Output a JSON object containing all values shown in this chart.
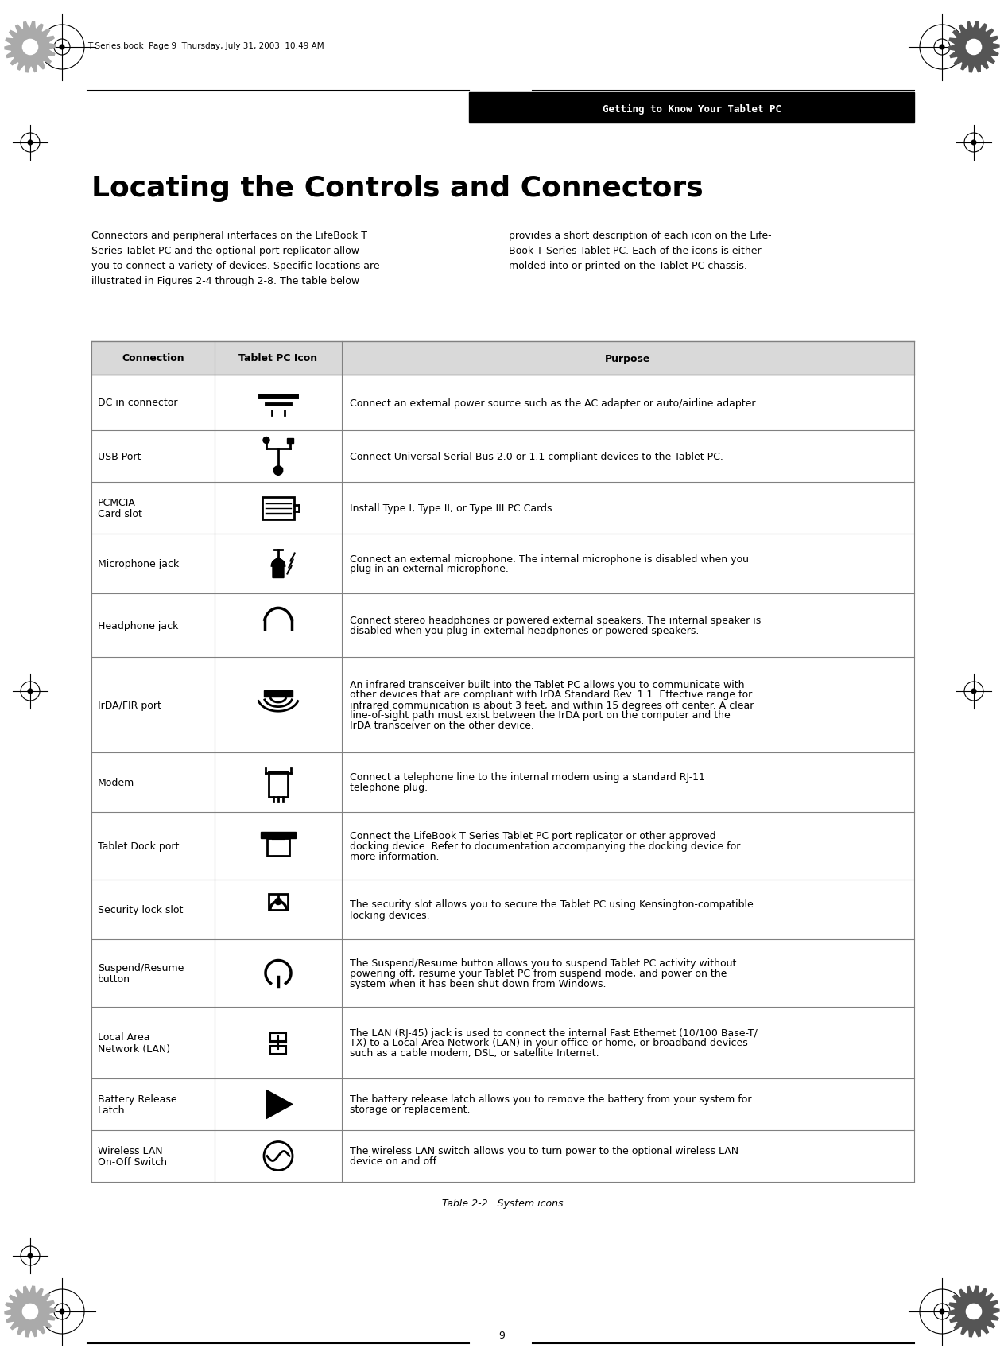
{
  "page_bg": "#ffffff",
  "header_bg": "#000000",
  "header_text": "Getting to Know Your Tablet PC",
  "header_text_color": "#ffffff",
  "title": "Locating the Controls and Connectors",
  "body_left": "Connectors and peripheral interfaces on the LifeBook T\nSeries Tablet PC and the optional port replicator allow\nyou to connect a variety of devices. Specific locations are\nillustrated in Figures 2-4 through 2-8. The table below",
  "body_right": "provides a short description of each icon on the Life-\nBook T Series Tablet PC. Each of the icons is either\nmolded into or printed on the Tablet PC chassis.",
  "table_caption": "Table 2-2.  System icons",
  "table_header_bg": "#d9d9d9",
  "table_header_cols": [
    "Connection",
    "Tablet PC Icon",
    "Purpose"
  ],
  "table_border_color": "#808080",
  "page_number": "9",
  "footer_text": "T Series.book  Page 9  Thursday, July 31, 2003  10:49 AM",
  "rows": [
    {
      "connection": "DC in connector",
      "purpose": "Connect an external power source such as the AC adapter or auto/airline adapter.",
      "icon_type": "dc_in"
    },
    {
      "connection": "USB Port",
      "purpose": "Connect Universal Serial Bus 2.0 or 1.1 compliant devices to the Tablet PC.",
      "icon_type": "usb"
    },
    {
      "connection": "PCMCIA\nCard slot",
      "purpose": "Install Type I, Type II, or Type III PC Cards.",
      "icon_type": "pcmcia"
    },
    {
      "connection": "Microphone jack",
      "purpose": "Connect an external microphone. The internal microphone is disabled when you\nplug in an external microphone.",
      "icon_type": "microphone"
    },
    {
      "connection": "Headphone jack",
      "purpose": "Connect stereo headphones or powered external speakers. The internal speaker is\ndisabled when you plug in external headphones or powered speakers.",
      "icon_type": "headphone"
    },
    {
      "connection": "IrDA/FIR port",
      "purpose": "An infrared transceiver built into the Tablet PC allows you to communicate with\nother devices that are compliant with IrDA Standard Rev. 1.1. Effective range for\ninfrared communication is about 3 feet, and within 15 degrees off center. A clear\nline-of-sight path must exist between the IrDA port on the computer and the\nIrDA transceiver on the other device.",
      "icon_type": "irda"
    },
    {
      "connection": "Modem",
      "purpose": "Connect a telephone line to the internal modem using a standard RJ-11\ntelephone plug.",
      "icon_type": "modem"
    },
    {
      "connection": "Tablet Dock port",
      "purpose": "Connect the LifeBook T Series Tablet PC port replicator or other approved\ndocking device. Refer to documentation accompanying the docking device for\nmore information.",
      "icon_type": "tablet_dock"
    },
    {
      "connection": "Security lock slot",
      "purpose": "The security slot allows you to secure the Tablet PC using Kensington-compatible\nlocking devices.",
      "icon_type": "security_lock"
    },
    {
      "connection": "Suspend/Resume\nbutton",
      "purpose": "The Suspend/Resume button allows you to suspend Tablet PC activity without\npowering off, resume your Tablet PC from suspend mode, and power on the\nsystem when it has been shut down from Windows.",
      "icon_type": "suspend_resume"
    },
    {
      "connection": "Local Area\nNetwork (LAN)",
      "purpose": "The LAN (RJ-45) jack is used to connect the internal Fast Ethernet (10/100 Base-T/\nTX) to a Local Area Network (LAN) in your office or home, or broadband devices\nsuch as a cable modem, DSL, or satellite Internet.",
      "icon_type": "lan"
    },
    {
      "connection": "Battery Release\nLatch",
      "purpose": "The battery release latch allows you to remove the battery from your system for\nstorage or replacement.",
      "icon_type": "battery_release"
    },
    {
      "connection": "Wireless LAN\nOn-Off Switch",
      "purpose": "The wireless LAN switch allows you to turn power to the optional wireless LAN\ndevice on and off.",
      "icon_type": "wireless_lan"
    }
  ]
}
